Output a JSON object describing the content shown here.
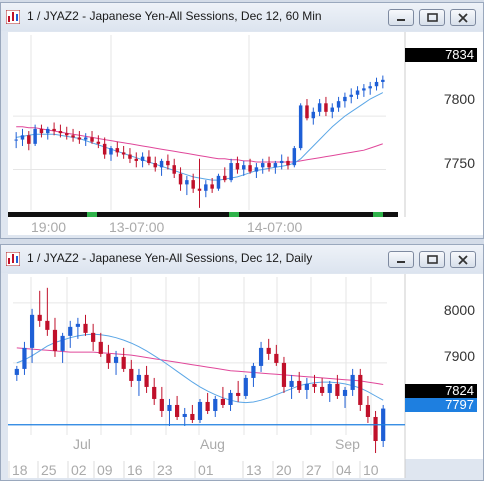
{
  "windows": [
    {
      "title": "1 / JYAZ2 - Japanese Yen-All Sessions, Dec 12, 60 Min",
      "price_axis": [
        "7800",
        "7750"
      ],
      "last_price": "7834",
      "time_axis": [
        "19:00",
        "13-07:00",
        "14-07:00"
      ]
    },
    {
      "title": "1 / JYAZ2 - Japanese Yen-All Sessions, Dec 12, Daily",
      "price_axis": [
        "8000",
        "7900"
      ],
      "last_price": "7824",
      "hline_price": "7797",
      "month_labels": [
        "Jul",
        "Aug",
        "Sep"
      ],
      "date_axis": [
        "18",
        "25",
        "02",
        "09",
        "16",
        "23",
        "01",
        "13",
        "20",
        "27",
        "04",
        "10"
      ]
    }
  ],
  "window_buttons": [
    "minimize-button",
    "restore-button",
    "close-button"
  ],
  "chart_data": [
    {
      "type": "candlestick",
      "title": "1 / JYAZ2 - Japanese Yen-All Sessions, Dec 12, 60 Min",
      "ylim": [
        7712,
        7876
      ],
      "yticks": [
        7800,
        7750
      ],
      "last": 7834,
      "up_color": "#1e5fd6",
      "down_color": "#c0102a",
      "ma_fast_color": "#5aa6e6",
      "ma_slow_color": "#e0479a",
      "candles": [
        [
          7778,
          7785,
          7770,
          7778
        ],
        [
          7778,
          7788,
          7772,
          7782
        ],
        [
          7782,
          7786,
          7768,
          7774
        ],
        [
          7774,
          7792,
          7772,
          7788
        ],
        [
          7788,
          7792,
          7780,
          7784
        ],
        [
          7784,
          7790,
          7778,
          7788
        ],
        [
          7788,
          7794,
          7782,
          7786
        ],
        [
          7786,
          7792,
          7780,
          7784
        ],
        [
          7784,
          7790,
          7778,
          7782
        ],
        [
          7782,
          7788,
          7776,
          7780
        ],
        [
          7780,
          7786,
          7774,
          7778
        ],
        [
          7778,
          7784,
          7772,
          7780
        ],
        [
          7780,
          7786,
          7774,
          7776
        ],
        [
          7776,
          7782,
          7770,
          7774
        ],
        [
          7774,
          7780,
          7760,
          7764
        ],
        [
          7764,
          7772,
          7758,
          7770
        ],
        [
          7770,
          7776,
          7762,
          7766
        ],
        [
          7766,
          7772,
          7760,
          7764
        ],
        [
          7764,
          7770,
          7756,
          7760
        ],
        [
          7760,
          7766,
          7752,
          7758
        ],
        [
          7758,
          7766,
          7752,
          7762
        ],
        [
          7762,
          7768,
          7754,
          7756
        ],
        [
          7756,
          7762,
          7748,
          7752
        ],
        [
          7752,
          7760,
          7744,
          7758
        ],
        [
          7758,
          7764,
          7750,
          7754
        ],
        [
          7754,
          7760,
          7742,
          7746
        ],
        [
          7746,
          7752,
          7730,
          7736
        ],
        [
          7736,
          7744,
          7726,
          7740
        ],
        [
          7740,
          7746,
          7728,
          7732
        ],
        [
          7732,
          7760,
          7714,
          7730
        ],
        [
          7730,
          7740,
          7724,
          7736
        ],
        [
          7736,
          7742,
          7728,
          7732
        ],
        [
          7732,
          7746,
          7730,
          7744
        ],
        [
          7744,
          7752,
          7738,
          7740
        ],
        [
          7740,
          7760,
          7738,
          7756
        ],
        [
          7756,
          7762,
          7746,
          7750
        ],
        [
          7750,
          7758,
          7744,
          7754
        ],
        [
          7754,
          7760,
          7746,
          7748
        ],
        [
          7748,
          7756,
          7742,
          7752
        ],
        [
          7752,
          7760,
          7746,
          7756
        ],
        [
          7756,
          7762,
          7748,
          7752
        ],
        [
          7752,
          7758,
          7746,
          7756
        ],
        [
          7756,
          7764,
          7750,
          7758
        ],
        [
          7758,
          7762,
          7750,
          7754
        ],
        [
          7754,
          7772,
          7752,
          7770
        ],
        [
          7770,
          7812,
          7768,
          7810
        ],
        [
          7810,
          7816,
          7796,
          7798
        ],
        [
          7798,
          7808,
          7792,
          7804
        ],
        [
          7804,
          7816,
          7800,
          7812
        ],
        [
          7812,
          7818,
          7800,
          7804
        ],
        [
          7804,
          7812,
          7798,
          7808
        ],
        [
          7808,
          7818,
          7804,
          7814
        ],
        [
          7814,
          7822,
          7808,
          7818
        ],
        [
          7818,
          7826,
          7812,
          7820
        ],
        [
          7820,
          7828,
          7816,
          7824
        ],
        [
          7824,
          7830,
          7818,
          7826
        ],
        [
          7826,
          7832,
          7820,
          7828
        ],
        [
          7828,
          7836,
          7824,
          7832
        ],
        [
          7832,
          7838,
          7826,
          7834
        ]
      ],
      "ma_fast": [
        7780,
        7781,
        7782,
        7783,
        7783,
        7783,
        7783,
        7782,
        7781,
        7780,
        7779,
        7777,
        7775,
        7773,
        7771,
        7769,
        7767,
        7765,
        7763,
        7761,
        7759,
        7757,
        7755,
        7753,
        7751,
        7749,
        7747,
        7745,
        7743,
        7742,
        7741,
        7740,
        7740,
        7741,
        7742,
        7743,
        7745,
        7747,
        7749,
        7750,
        7751,
        7752,
        7753,
        7754,
        7756,
        7760,
        7766,
        7772,
        7778,
        7784,
        7790,
        7795,
        7800,
        7804,
        7808,
        7812,
        7816,
        7819,
        7822
      ],
      "ma_slow": [
        7790,
        7790,
        7789,
        7789,
        7788,
        7787,
        7786,
        7785,
        7784,
        7783,
        7782,
        7781,
        7780,
        7779,
        7778,
        7777,
        7776,
        7775,
        7774,
        7773,
        7772,
        7771,
        7770,
        7769,
        7768,
        7767,
        7766,
        7765,
        7764,
        7763,
        7762,
        7761,
        7760,
        7760,
        7759,
        7759,
        7758,
        7758,
        7757,
        7757,
        7757,
        7757,
        7757,
        7757,
        7757,
        7758,
        7759,
        7760,
        7761,
        7762,
        7763,
        7764,
        7765,
        7766,
        7767,
        7768,
        7770,
        7772,
        7774
      ],
      "session_markers": "black bar along bottom with green marks at session boundaries"
    },
    {
      "type": "candlestick",
      "title": "1 / JYAZ2 - Japanese Yen-All Sessions, Dec 12, Daily",
      "ylim": [
        7780,
        8043
      ],
      "yticks": [
        8000,
        7900
      ],
      "last": 7824,
      "hline": 7797,
      "hline_color": "#1e7fe0",
      "up_color": "#1e5fd6",
      "down_color": "#c0102a",
      "ma_fast_color": "#5aa6e6",
      "ma_slow_color": "#e0479a",
      "candles": [
        [
          7880,
          7895,
          7870,
          7890
        ],
        [
          7890,
          7935,
          7880,
          7925
        ],
        [
          7925,
          7990,
          7900,
          7980
        ],
        [
          7980,
          8020,
          7960,
          7970
        ],
        [
          7970,
          8025,
          7945,
          7955
        ],
        [
          7955,
          7975,
          7910,
          7920
        ],
        [
          7920,
          7950,
          7900,
          7945
        ],
        [
          7945,
          7970,
          7925,
          7960
        ],
        [
          7960,
          7975,
          7940,
          7965
        ],
        [
          7965,
          7980,
          7945,
          7950
        ],
        [
          7950,
          7965,
          7920,
          7935
        ],
        [
          7935,
          7950,
          7910,
          7915
        ],
        [
          7915,
          7930,
          7890,
          7900
        ],
        [
          7900,
          7920,
          7880,
          7910
        ],
        [
          7910,
          7925,
          7885,
          7890
        ],
        [
          7890,
          7905,
          7860,
          7870
        ],
        [
          7870,
          7890,
          7845,
          7880
        ],
        [
          7880,
          7895,
          7850,
          7860
        ],
        [
          7860,
          7875,
          7830,
          7840
        ],
        [
          7840,
          7860,
          7810,
          7820
        ],
        [
          7820,
          7840,
          7795,
          7830
        ],
        [
          7830,
          7845,
          7805,
          7810
        ],
        [
          7810,
          7825,
          7795,
          7815
        ],
        [
          7815,
          7830,
          7800,
          7805
        ],
        [
          7805,
          7840,
          7800,
          7835
        ],
        [
          7835,
          7850,
          7815,
          7820
        ],
        [
          7820,
          7845,
          7810,
          7840
        ],
        [
          7840,
          7860,
          7825,
          7830
        ],
        [
          7830,
          7855,
          7820,
          7850
        ],
        [
          7850,
          7870,
          7835,
          7845
        ],
        [
          7845,
          7880,
          7840,
          7875
        ],
        [
          7875,
          7900,
          7860,
          7895
        ],
        [
          7895,
          7935,
          7885,
          7925
        ],
        [
          7925,
          7940,
          7905,
          7915
        ],
        [
          7915,
          7930,
          7895,
          7900
        ],
        [
          7900,
          7910,
          7850,
          7860
        ],
        [
          7860,
          7880,
          7840,
          7870
        ],
        [
          7870,
          7885,
          7850,
          7855
        ],
        [
          7855,
          7875,
          7840,
          7865
        ],
        [
          7865,
          7880,
          7850,
          7860
        ],
        [
          7860,
          7875,
          7845,
          7850
        ],
        [
          7850,
          7870,
          7835,
          7865
        ],
        [
          7865,
          7880,
          7840,
          7845
        ],
        [
          7845,
          7860,
          7825,
          7855
        ],
        [
          7855,
          7890,
          7845,
          7880
        ],
        [
          7880,
          7890,
          7820,
          7830
        ],
        [
          7830,
          7845,
          7800,
          7810
        ],
        [
          7810,
          7820,
          7750,
          7770
        ],
        [
          7770,
          7830,
          7760,
          7824
        ]
      ],
      "ma_fast": [
        7900,
        7905,
        7912,
        7920,
        7928,
        7934,
        7938,
        7942,
        7945,
        7947,
        7948,
        7947,
        7945,
        7942,
        7938,
        7933,
        7927,
        7920,
        7912,
        7904,
        7895,
        7886,
        7877,
        7868,
        7860,
        7853,
        7847,
        7842,
        7838,
        7835,
        7834,
        7835,
        7838,
        7842,
        7847,
        7852,
        7857,
        7862,
        7865,
        7867,
        7868,
        7868,
        7867,
        7865,
        7862,
        7858,
        7852,
        7845,
        7838
      ],
      "ma_slow": [
        7925,
        7924,
        7923,
        7922,
        7921,
        7920,
        7919,
        7918,
        7918,
        7918,
        7918,
        7917,
        7916,
        7915,
        7914,
        7913,
        7911,
        7909,
        7907,
        7905,
        7903,
        7901,
        7899,
        7897,
        7895,
        7893,
        7891,
        7889,
        7887,
        7886,
        7885,
        7884,
        7883,
        7882,
        7881,
        7880,
        7879,
        7878,
        7877,
        7876,
        7875,
        7874,
        7873,
        7872,
        7871,
        7870,
        7868,
        7866,
        7864
      ]
    }
  ]
}
